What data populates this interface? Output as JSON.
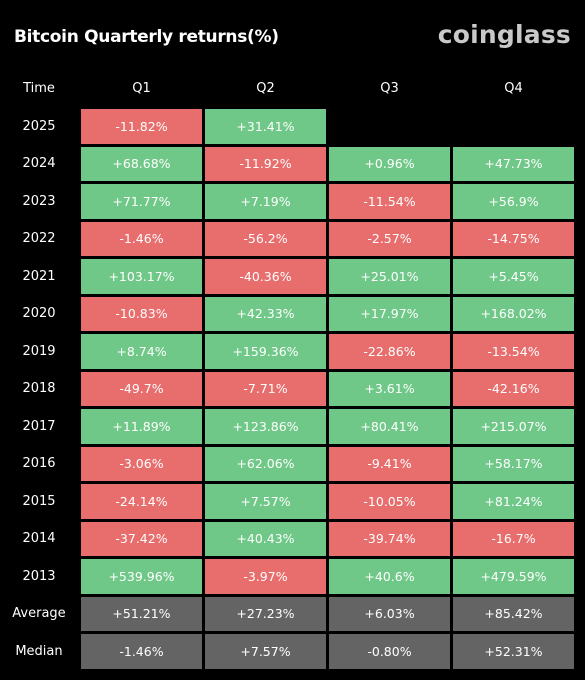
{
  "title": "Bitcoin Quarterly returns(%)",
  "logo": "coinglass",
  "colors": {
    "positive": "#6fc887",
    "negative": "#e86d6d",
    "summary": "#646464",
    "background": "#000000"
  },
  "chart_data": {
    "type": "table",
    "columns": [
      "Time",
      "Q1",
      "Q2",
      "Q3",
      "Q4"
    ],
    "rows": [
      {
        "label": "2025",
        "values": [
          "-11.82%",
          "+31.41%",
          null,
          null
        ]
      },
      {
        "label": "2024",
        "values": [
          "+68.68%",
          "-11.92%",
          "+0.96%",
          "+47.73%"
        ]
      },
      {
        "label": "2023",
        "values": [
          "+71.77%",
          "+7.19%",
          "-11.54%",
          "+56.9%"
        ]
      },
      {
        "label": "2022",
        "values": [
          "-1.46%",
          "-56.2%",
          "-2.57%",
          "-14.75%"
        ]
      },
      {
        "label": "2021",
        "values": [
          "+103.17%",
          "-40.36%",
          "+25.01%",
          "+5.45%"
        ]
      },
      {
        "label": "2020",
        "values": [
          "-10.83%",
          "+42.33%",
          "+17.97%",
          "+168.02%"
        ]
      },
      {
        "label": "2019",
        "values": [
          "+8.74%",
          "+159.36%",
          "-22.86%",
          "-13.54%"
        ]
      },
      {
        "label": "2018",
        "values": [
          "-49.7%",
          "-7.71%",
          "+3.61%",
          "-42.16%"
        ]
      },
      {
        "label": "2017",
        "values": [
          "+11.89%",
          "+123.86%",
          "+80.41%",
          "+215.07%"
        ]
      },
      {
        "label": "2016",
        "values": [
          "-3.06%",
          "+62.06%",
          "-9.41%",
          "+58.17%"
        ]
      },
      {
        "label": "2015",
        "values": [
          "-24.14%",
          "+7.57%",
          "-10.05%",
          "+81.24%"
        ]
      },
      {
        "label": "2014",
        "values": [
          "-37.42%",
          "+40.43%",
          "-39.74%",
          "-16.7%"
        ]
      },
      {
        "label": "2013",
        "values": [
          "+539.96%",
          "-3.97%",
          "+40.6%",
          "+479.59%"
        ]
      }
    ],
    "summary_rows": [
      {
        "label": "Average",
        "values": [
          "+51.21%",
          "+27.23%",
          "+6.03%",
          "+85.42%"
        ]
      },
      {
        "label": "Median",
        "values": [
          "-1.46%",
          "+7.57%",
          "-0.80%",
          "+52.31%"
        ]
      }
    ]
  }
}
